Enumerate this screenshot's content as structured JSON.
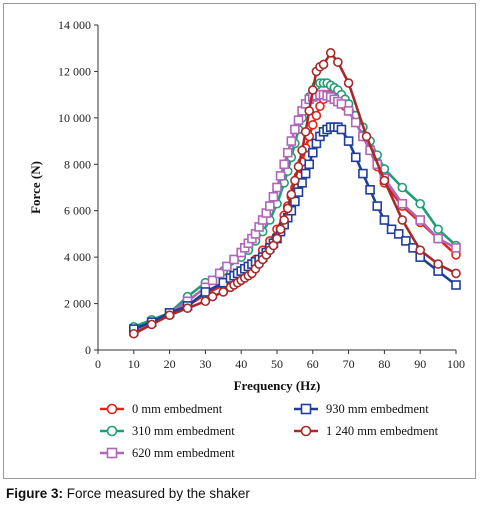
{
  "caption": {
    "label": "Figure 3:",
    "text": " Force measured by the shaker"
  },
  "chart_data": {
    "type": "line",
    "title": "",
    "xlabel": "Frequency (Hz)",
    "ylabel": "Force (N)",
    "xlim": [
      0,
      100
    ],
    "ylim": [
      0,
      14000
    ],
    "xticks": [
      "0",
      "10",
      "20",
      "30",
      "40",
      "50",
      "60",
      "70",
      "80",
      "90",
      "100"
    ],
    "yticks": [
      "0",
      "2 000",
      "4 000",
      "6 000",
      "8 000",
      "10 000",
      "12 000",
      "14 000"
    ],
    "grid": false,
    "legend_position": "bottom",
    "series": [
      {
        "name": "0 mm embedment",
        "color": "#e2231a",
        "marker": "circle",
        "x": [
          10,
          15,
          20,
          25,
          30,
          35,
          40,
          42,
          44,
          46,
          48,
          50,
          52,
          53,
          54,
          55,
          56,
          57,
          58,
          59,
          60,
          61,
          62,
          63,
          64,
          65,
          66,
          67,
          68,
          69,
          70,
          72,
          74,
          76,
          78,
          80,
          85,
          90,
          95,
          100
        ],
        "y": [
          900,
          1200,
          1500,
          1900,
          2400,
          2800,
          3400,
          3600,
          3900,
          4300,
          4700,
          5200,
          5800,
          6200,
          6600,
          7000,
          7500,
          8100,
          8700,
          9200,
          9700,
          10100,
          10500,
          10800,
          11000,
          11000,
          10950,
          10850,
          10700,
          10500,
          10300,
          9800,
          9200,
          8600,
          7900,
          7200,
          6200,
          5500,
          4800,
          4100
        ]
      },
      {
        "name": "310 mm embedment",
        "color": "#1f9e74",
        "marker": "circle",
        "x": [
          10,
          15,
          20,
          25,
          30,
          35,
          40,
          42,
          44,
          46,
          48,
          50,
          52,
          53,
          54,
          55,
          56,
          57,
          58,
          59,
          60,
          61,
          62,
          63,
          64,
          65,
          66,
          67,
          68,
          69,
          70,
          72,
          74,
          76,
          78,
          80,
          85,
          90,
          95,
          100
        ],
        "y": [
          1000,
          1300,
          1600,
          2300,
          2900,
          3400,
          4000,
          4300,
          4700,
          5100,
          5600,
          6300,
          7200,
          7700,
          8300,
          8900,
          9500,
          10000,
          10500,
          10900,
          11200,
          11400,
          11500,
          11500,
          11500,
          11400,
          11300,
          11200,
          11000,
          10800,
          10600,
          10100,
          9600,
          9000,
          8400,
          7800,
          7000,
          6300,
          5200,
          4500
        ]
      },
      {
        "name": "620 mm embedment",
        "color": "#b066b8",
        "marker": "square",
        "x": [
          10,
          15,
          20,
          25,
          30,
          32,
          34,
          36,
          38,
          40,
          41,
          42,
          43,
          44,
          45,
          46,
          47,
          48,
          49,
          50,
          51,
          52,
          53,
          54,
          55,
          56,
          57,
          58,
          59,
          60,
          61,
          62,
          63,
          64,
          65,
          66,
          67,
          68,
          70,
          72,
          74,
          76,
          78,
          80,
          85,
          90,
          95,
          100
        ],
        "y": [
          800,
          1200,
          1600,
          2100,
          2700,
          3000,
          3300,
          3600,
          3900,
          4200,
          4400,
          4600,
          4800,
          5000,
          5300,
          5600,
          5900,
          6200,
          6600,
          7000,
          7500,
          8000,
          8500,
          9000,
          9500,
          9900,
          10300,
          10600,
          10800,
          10900,
          10950,
          11000,
          11000,
          10950,
          10900,
          10800,
          10700,
          10600,
          10300,
          9800,
          9200,
          8600,
          8000,
          7400,
          6300,
          5600,
          4800,
          4400
        ]
      },
      {
        "name": "930 mm embedment",
        "color": "#1f3d99",
        "marker": "square",
        "x": [
          10,
          15,
          20,
          25,
          30,
          35,
          37,
          38,
          39,
          40,
          41,
          42,
          43,
          44,
          45,
          46,
          47,
          48,
          49,
          50,
          51,
          52,
          53,
          54,
          55,
          56,
          57,
          58,
          59,
          60,
          61,
          62,
          63,
          64,
          65,
          66,
          67,
          68,
          70,
          72,
          74,
          76,
          78,
          80,
          82,
          84,
          86,
          88,
          90,
          95,
          100
        ],
        "y": [
          900,
          1200,
          1600,
          1900,
          2500,
          2900,
          3100,
          3200,
          3300,
          3400,
          3500,
          3600,
          3700,
          3800,
          3900,
          4000,
          4200,
          4400,
          4600,
          4800,
          5100,
          5400,
          5700,
          6000,
          6400,
          6800,
          7200,
          7600,
          8000,
          8500,
          8900,
          9200,
          9400,
          9500,
          9600,
          9600,
          9600,
          9500,
          9000,
          8300,
          7600,
          6900,
          6200,
          5600,
          5200,
          5000,
          4700,
          4400,
          4000,
          3400,
          2800
        ]
      },
      {
        "name": "1 240 mm embedment",
        "color": "#a52a2a",
        "marker": "circle",
        "x": [
          10,
          15,
          20,
          25,
          30,
          32,
          35,
          37,
          38,
          39,
          40,
          41,
          42,
          43,
          44,
          45,
          46,
          47,
          48,
          49,
          50,
          51,
          52,
          53,
          54,
          55,
          56,
          57,
          58,
          59,
          60,
          61,
          62,
          63,
          65,
          67,
          70,
          75,
          80,
          85,
          90,
          95,
          100
        ],
        "y": [
          700,
          1100,
          1500,
          1800,
          2100,
          2300,
          2500,
          2700,
          2800,
          2900,
          3000,
          3100,
          3200,
          3300,
          3500,
          3700,
          3900,
          4100,
          4300,
          4500,
          4800,
          5200,
          5600,
          6100,
          6700,
          7300,
          7900,
          8600,
          9400,
          10300,
          11200,
          12000,
          12200,
          12300,
          12800,
          12400,
          11500,
          9200,
          7300,
          5600,
          4300,
          3700,
          3300
        ]
      }
    ]
  }
}
